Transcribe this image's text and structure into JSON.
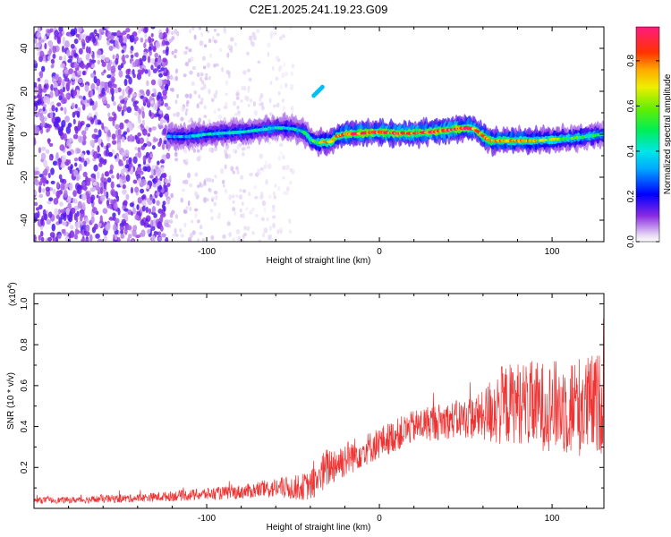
{
  "title": "C2E1.2025.241.19.23.G09",
  "chart_data": [
    {
      "type": "heatmap",
      "xlabel": "Height of straight line (km)",
      "ylabel": "Frequency (Hz)",
      "xlim": [
        -200,
        130
      ],
      "ylim": [
        -50,
        50
      ],
      "x_ticks": [
        -100,
        0,
        100
      ],
      "x_tick_labels": [
        "-100",
        "0",
        "100"
      ],
      "y_ticks": [
        -40,
        -20,
        0,
        20,
        40
      ],
      "y_tick_labels": [
        "-40",
        "-20",
        "0",
        "20",
        "40"
      ],
      "colorbar": {
        "label": "Normalized spectral amplitude",
        "range": [
          0,
          0.95
        ],
        "ticks": [
          0.0,
          0.2,
          0.4,
          0.6,
          0.8
        ],
        "tick_labels": [
          "0.0",
          "0.2",
          "0.4",
          "0.6",
          "0.8"
        ]
      },
      "noise_region": {
        "x": [
          -200,
          -122
        ],
        "amplitude": 0.15,
        "note": "dense broadband noise"
      },
      "sparse_region": {
        "x": [
          -122,
          -50
        ],
        "amplitude": 0.05
      },
      "ridge": {
        "x": [
          -122,
          -110,
          -100,
          -90,
          -80,
          -70,
          -60,
          -55,
          -50,
          -45,
          -42,
          -40,
          -37,
          -35,
          -33,
          -30,
          -28,
          -25,
          -20,
          -10,
          0,
          10,
          20,
          30,
          40,
          50,
          55,
          58,
          62,
          65,
          70,
          80,
          90,
          100,
          110,
          120,
          130
        ],
        "y": [
          -1,
          -1,
          0,
          0.5,
          1,
          2,
          3,
          3,
          2.5,
          1.5,
          0,
          -2.5,
          -3.5,
          -4,
          -3.5,
          -3.5,
          -3.5,
          -1,
          0,
          0.5,
          1,
          0.5,
          0.5,
          1,
          2,
          3,
          2.5,
          0.5,
          -2,
          -3,
          -3,
          -3,
          -3,
          -2.5,
          -2,
          -1,
          0
        ],
        "peak_amplitude": [
          0.35,
          0.4,
          0.45,
          0.45,
          0.45,
          0.45,
          0.45,
          0.45,
          0.45,
          0.45,
          0.5,
          0.55,
          0.6,
          0.65,
          0.7,
          0.75,
          0.8,
          0.85,
          0.9,
          0.95,
          0.95,
          0.95,
          0.95,
          0.95,
          0.95,
          0.95,
          0.95,
          0.9,
          0.85,
          0.8,
          0.8,
          0.8,
          0.75,
          0.7,
          0.6,
          0.55,
          0.5
        ]
      },
      "isolated_feature": {
        "x": [
          -38,
          -33
        ],
        "y": [
          18,
          22
        ],
        "amplitude": 0.35
      }
    },
    {
      "type": "line",
      "xlabel": "Height of straight line (km)",
      "ylabel": "SNR (10 * v/v)",
      "multiplier_label": "(x10",
      "multiplier_exp": "4",
      "multiplier_close": ")",
      "xlim": [
        -200,
        130
      ],
      "ylim": [
        0,
        1.05
      ],
      "x_ticks": [
        -100,
        0,
        100
      ],
      "x_tick_labels": [
        "-100",
        "0",
        "100"
      ],
      "y_ticks": [
        0.2,
        0.4,
        0.6,
        0.8,
        1.0
      ],
      "y_tick_labels": [
        "0.2",
        "0.4",
        "0.6",
        "0.8",
        "1.0"
      ],
      "color": "#ee3333",
      "series": [
        {
          "name": "SNR",
          "x": [
            -200,
            -180,
            -160,
            -140,
            -120,
            -100,
            -80,
            -70,
            -60,
            -50,
            -40,
            -35,
            -30,
            -20,
            -10,
            0,
            10,
            20,
            30,
            40,
            50,
            60,
            65,
            70,
            80,
            90,
            100,
            110,
            120,
            130
          ],
          "mean": [
            0.04,
            0.04,
            0.045,
            0.05,
            0.06,
            0.07,
            0.08,
            0.09,
            0.1,
            0.1,
            0.11,
            0.15,
            0.2,
            0.24,
            0.28,
            0.32,
            0.36,
            0.4,
            0.42,
            0.43,
            0.44,
            0.45,
            0.48,
            0.5,
            0.52,
            0.5,
            0.5,
            0.5,
            0.5,
            0.52
          ],
          "spread": [
            0.015,
            0.015,
            0.02,
            0.02,
            0.025,
            0.03,
            0.035,
            0.04,
            0.05,
            0.06,
            0.07,
            0.1,
            0.1,
            0.09,
            0.08,
            0.08,
            0.08,
            0.08,
            0.09,
            0.09,
            0.1,
            0.12,
            0.18,
            0.2,
            0.2,
            0.22,
            0.22,
            0.25,
            0.25,
            0.25
          ]
        }
      ]
    }
  ]
}
